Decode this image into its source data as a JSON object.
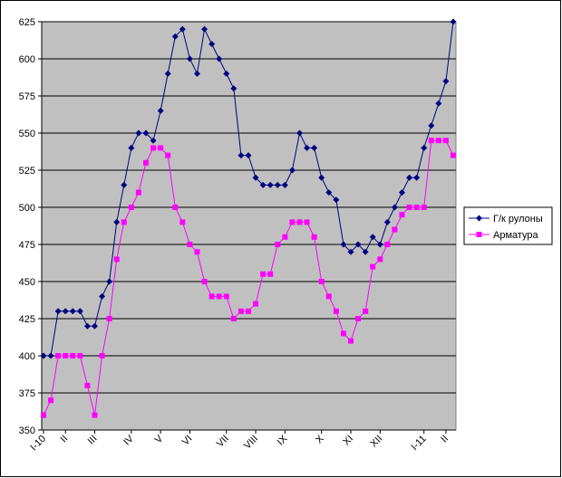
{
  "chart_data": {
    "type": "line",
    "categories": [
      "I-10",
      null,
      null,
      "II",
      null,
      null,
      null,
      "III",
      null,
      null,
      null,
      null,
      "IV",
      null,
      null,
      null,
      "V",
      null,
      null,
      null,
      "VI",
      null,
      null,
      null,
      null,
      "VII",
      null,
      null,
      null,
      "VIII",
      null,
      null,
      null,
      "IX",
      null,
      null,
      null,
      null,
      "X",
      null,
      null,
      null,
      "XI",
      null,
      null,
      null,
      "XII",
      null,
      null,
      null,
      null,
      null,
      "I-11",
      null,
      null,
      "II",
      null
    ],
    "series": [
      {
        "name": "Г/к рулоны",
        "color": "#000080",
        "marker": "diamond",
        "values": [
          400,
          400,
          430,
          430,
          430,
          430,
          420,
          420,
          440,
          450,
          490,
          515,
          540,
          550,
          550,
          545,
          565,
          590,
          615,
          620,
          600,
          590,
          620,
          610,
          600,
          590,
          580,
          535,
          535,
          520,
          515,
          515,
          515,
          515,
          525,
          550,
          540,
          540,
          520,
          510,
          505,
          475,
          470,
          475,
          470,
          480,
          475,
          490,
          500,
          510,
          520,
          520,
          540,
          555,
          570,
          585,
          625
        ]
      },
      {
        "name": "Арматура",
        "color": "#ff00ff",
        "marker": "square",
        "values": [
          360,
          370,
          400,
          400,
          400,
          400,
          380,
          360,
          400,
          425,
          465,
          490,
          500,
          510,
          530,
          540,
          540,
          535,
          500,
          490,
          475,
          470,
          450,
          440,
          440,
          440,
          425,
          430,
          430,
          435,
          455,
          455,
          475,
          480,
          490,
          490,
          490,
          480,
          450,
          440,
          430,
          415,
          410,
          425,
          430,
          460,
          465,
          475,
          485,
          495,
          500,
          500,
          500,
          545,
          545,
          545,
          535
        ]
      }
    ],
    "ylim": [
      350,
      625
    ],
    "yticks": [
      350,
      375,
      400,
      425,
      450,
      475,
      500,
      525,
      550,
      575,
      600,
      625
    ],
    "grid": true,
    "legend": "right",
    "plot_background": "#c0c0c0"
  }
}
